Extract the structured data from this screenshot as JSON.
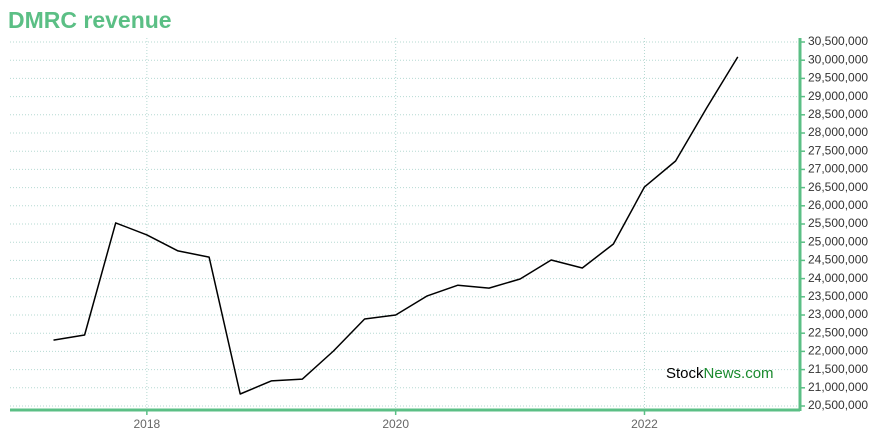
{
  "chart_data": {
    "type": "line",
    "title": "DMRC revenue",
    "x": [
      2017.25,
      2017.5,
      2017.75,
      2018,
      2018.25,
      2018.5,
      2018.75,
      2019,
      2019.25,
      2019.5,
      2019.75,
      2020,
      2020.25,
      2020.5,
      2020.75,
      2021,
      2021.25,
      2021.5,
      2021.75,
      2022,
      2022.25,
      2022.5,
      2022.75
    ],
    "values": [
      22310000,
      22450000,
      25530000,
      25200000,
      24760000,
      24590000,
      20830000,
      21190000,
      21240000,
      22010000,
      22890000,
      23000000,
      23520000,
      23820000,
      23740000,
      23990000,
      24510000,
      24290000,
      24950000,
      26520000,
      27230000,
      28690000,
      30090000
    ],
    "color": "#000000",
    "xlim": [
      2016.9,
      2023.25
    ],
    "xticks": [
      2018,
      2020,
      2022
    ],
    "ylim": [
      20500000,
      30500000
    ],
    "yticks": [
      {
        "value": 20500000,
        "label": "20,500,000"
      },
      {
        "value": 21000000,
        "label": "21,000,000"
      },
      {
        "value": 21500000,
        "label": "21,500,000"
      },
      {
        "value": 22000000,
        "label": "22,000,000"
      },
      {
        "value": 22500000,
        "label": "22,500,000"
      },
      {
        "value": 23000000,
        "label": "23,000,000"
      },
      {
        "value": 23500000,
        "label": "23,500,000"
      },
      {
        "value": 24000000,
        "label": "24,000,000"
      },
      {
        "value": 24500000,
        "label": "24,500,000"
      },
      {
        "value": 25000000,
        "label": "25,000,000"
      },
      {
        "value": 25500000,
        "label": "25,500,000"
      },
      {
        "value": 26000000,
        "label": "26,000,000"
      },
      {
        "value": 26500000,
        "label": "26,500,000"
      },
      {
        "value": 27000000,
        "label": "27,000,000"
      },
      {
        "value": 27500000,
        "label": "27,500,000"
      },
      {
        "value": 28000000,
        "label": "28,000,000"
      },
      {
        "value": 28500000,
        "label": "28,500,000"
      },
      {
        "value": 29000000,
        "label": "29,000,000"
      },
      {
        "value": 29500000,
        "label": "29,500,000"
      },
      {
        "value": 30000000,
        "label": "30,000,000"
      },
      {
        "value": 30500000,
        "label": "30,500,000"
      }
    ],
    "grid": true,
    "watermark": {
      "brand": "Stock",
      "domain": "News.com"
    }
  }
}
